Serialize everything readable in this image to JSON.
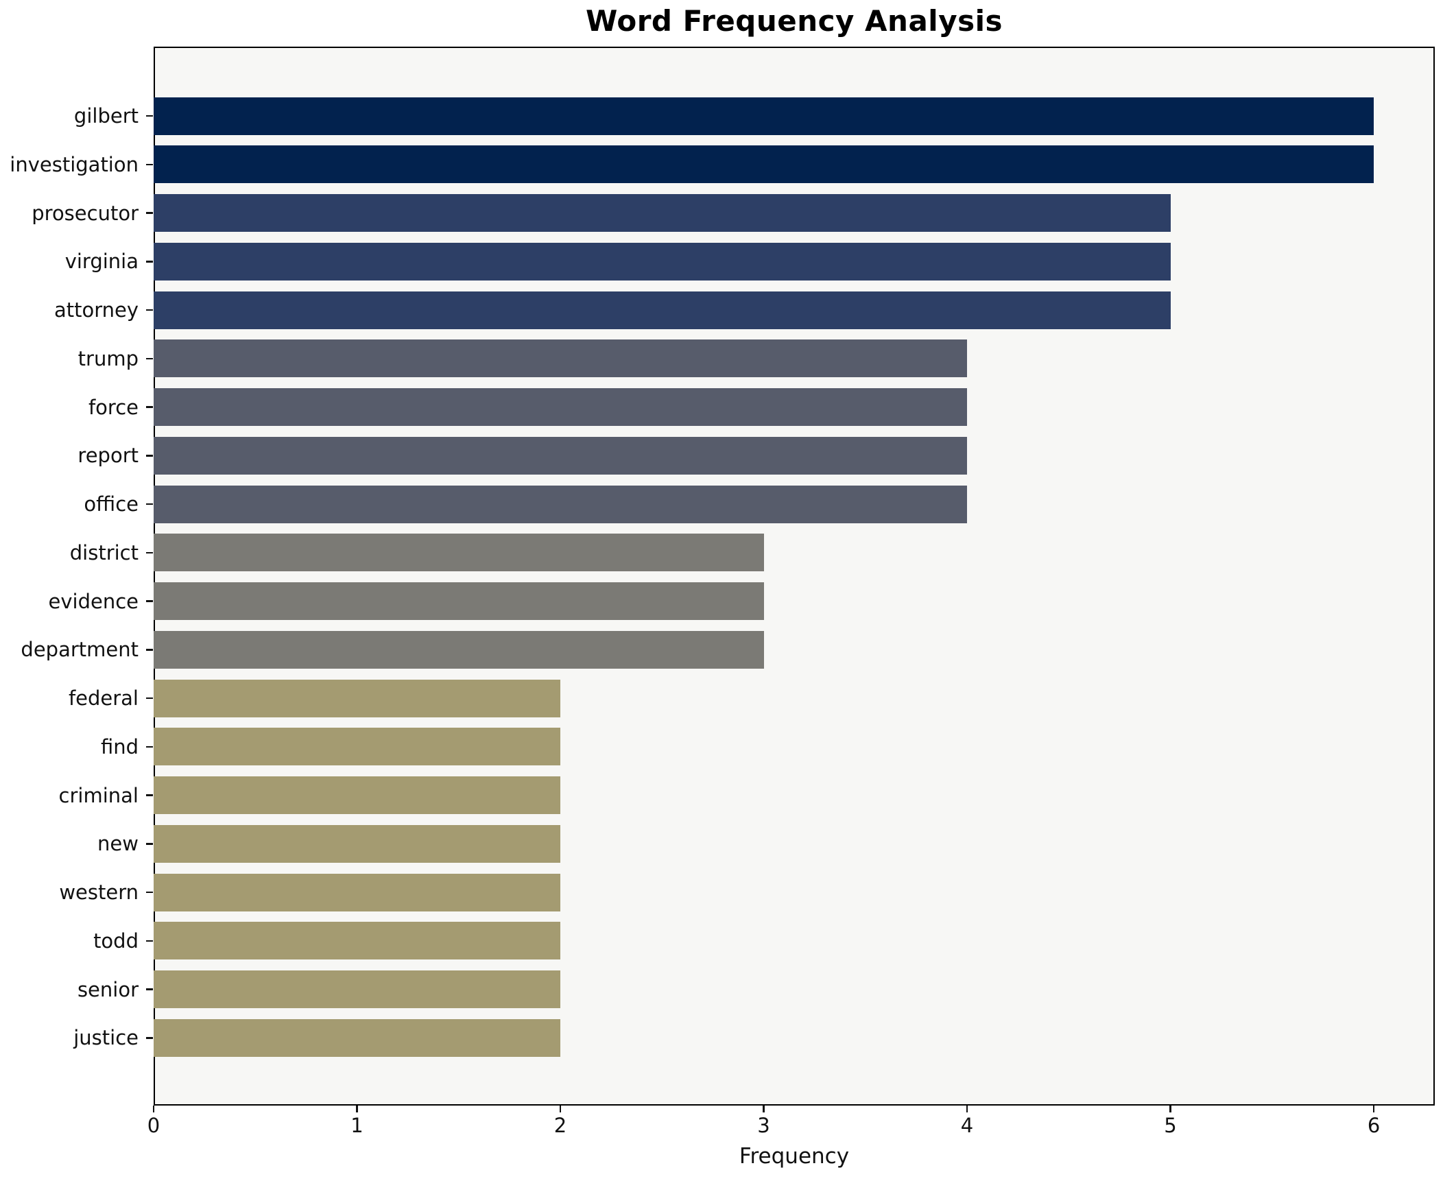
{
  "chart_data": {
    "type": "bar",
    "orientation": "horizontal",
    "title": "Word Frequency Analysis",
    "xlabel": "Frequency",
    "ylabel": "",
    "categories": [
      "gilbert",
      "investigation",
      "prosecutor",
      "virginia",
      "attorney",
      "trump",
      "force",
      "report",
      "office",
      "district",
      "evidence",
      "department",
      "federal",
      "find",
      "criminal",
      "new",
      "western",
      "todd",
      "senior",
      "justice"
    ],
    "values": [
      6,
      6,
      5,
      5,
      5,
      4,
      4,
      4,
      4,
      3,
      3,
      3,
      2,
      2,
      2,
      2,
      2,
      2,
      2,
      2
    ],
    "bar_colors": [
      "#02224e",
      "#02224e",
      "#2d3f66",
      "#2d3f66",
      "#2d3f66",
      "#575c6b",
      "#575c6b",
      "#575c6b",
      "#575c6b",
      "#7b7a75",
      "#7b7a75",
      "#7b7a75",
      "#a49b71",
      "#a49b71",
      "#a49b71",
      "#a49b71",
      "#a49b71",
      "#a49b71",
      "#a49b71",
      "#a49b71"
    ],
    "xticks": [
      0,
      1,
      2,
      3,
      4,
      5,
      6
    ],
    "xlim": [
      0,
      6.3
    ],
    "grid": false,
    "legend_position": "none",
    "plot_background": "#f7f7f5",
    "figure_background": "#ffffff",
    "spine_color": "#000000",
    "tick_text_color": "#111111"
  }
}
